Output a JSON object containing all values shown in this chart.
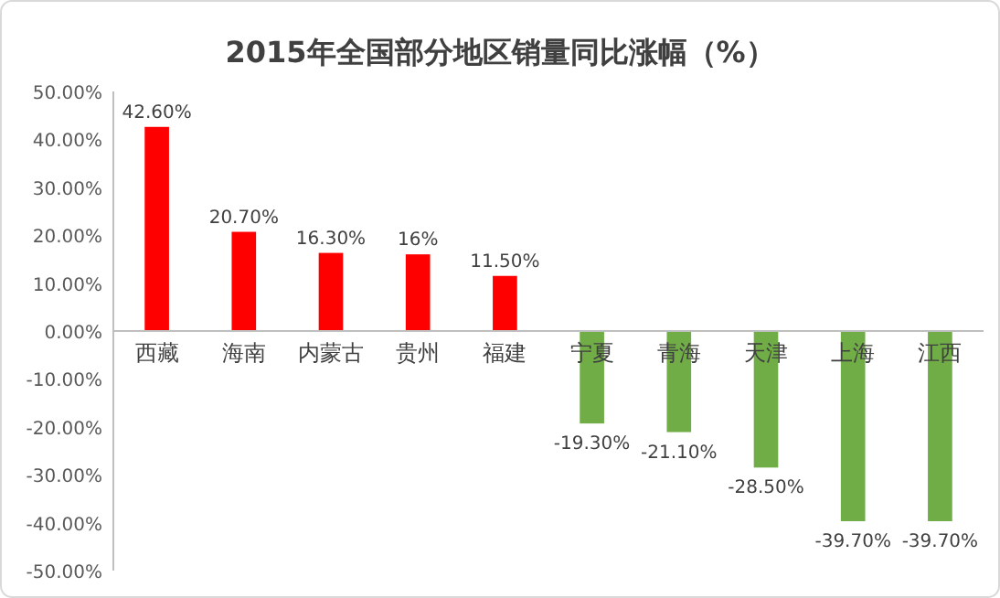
{
  "chart_data": {
    "type": "bar",
    "title": "2015年全国部分地区销量同比涨幅（%）",
    "categories": [
      "西藏",
      "海南",
      "内蒙古",
      "贵州",
      "福建",
      "宁夏",
      "青海",
      "天津",
      "上海",
      "江西"
    ],
    "values": [
      42.6,
      20.7,
      16.3,
      16,
      11.5,
      -19.3,
      -21.1,
      -28.5,
      -39.7,
      -39.7
    ],
    "colors": [
      "#ff0000",
      "#ff0000",
      "#ff0000",
      "#ff0000",
      "#ff0000",
      "#70ad47",
      "#70ad47",
      "#70ad47",
      "#70ad47",
      "#70ad47"
    ],
    "value_labels": [
      "42.60%",
      "20.70%",
      "16.30%",
      "16%",
      "11.50%",
      "-19.30%",
      "-21.10%",
      "-28.50%",
      "-39.70%",
      "-39.70%"
    ],
    "ylim": [
      -50,
      50
    ],
    "yticks": [
      {
        "value": 50,
        "label": "50.00%"
      },
      {
        "value": 40,
        "label": "40.00%"
      },
      {
        "value": 30,
        "label": "30.00%"
      },
      {
        "value": 20,
        "label": "20.00%"
      },
      {
        "value": 10,
        "label": "10.00%"
      },
      {
        "value": 0,
        "label": "0.00%"
      },
      {
        "value": -10,
        "label": "-10.00%"
      },
      {
        "value": -20,
        "label": "-20.00%"
      },
      {
        "value": -30,
        "label": "-30.00%"
      },
      {
        "value": -40,
        "label": "-40.00%"
      },
      {
        "value": -50,
        "label": "-50.00%"
      }
    ]
  }
}
